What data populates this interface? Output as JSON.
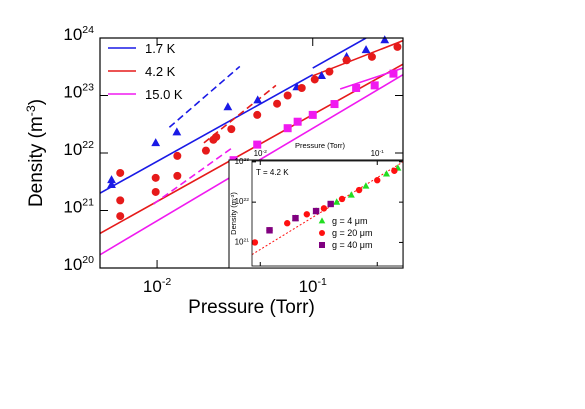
{
  "chart_data": [
    {
      "type": "scatter",
      "log_x": true,
      "log_y": true,
      "xlabel": "Pressure (Torr)",
      "ylabel": {
        "text": "Density (m",
        "sup": "-3",
        "tail": ")"
      },
      "xlim": [
        0.0043,
        0.38
      ],
      "ylim": [
        1e+20,
        1e+24
      ],
      "xticks": [
        {
          "value": 0.01,
          "label": "10",
          "sup": "-2"
        },
        {
          "value": 0.1,
          "label": "10",
          "sup": "-1"
        }
      ],
      "yticks": [
        {
          "value": 1e+20,
          "label": "10",
          "sup": "20"
        },
        {
          "value": 1e+21,
          "label": "10",
          "sup": "21"
        },
        {
          "value": 1e+22,
          "label": "10",
          "sup": "22"
        },
        {
          "value": 1e+23,
          "label": "10",
          "sup": "23"
        },
        {
          "value": 1e+24,
          "label": "10",
          "sup": "24"
        }
      ],
      "legend": "upper-left",
      "series": [
        {
          "name": "1.7 K",
          "color": "#1a1ae6",
          "marker": "triangle",
          "x": [
            0.0051,
            0.0051,
            0.0098,
            0.0134,
            0.0285,
            0.0443,
            0.079,
            0.114,
            0.165,
            0.22,
            0.29
          ],
          "y": [
            2.8e+21,
            3.4e+21,
            1.5e+22,
            2.3e+22,
            6.3e+22,
            8.3e+22,
            1.4e+23,
            2.2e+23,
            4.7e+23,
            6.2e+23,
            9.2e+23
          ]
        },
        {
          "name": "4.2 K",
          "color": "#e61a1a",
          "marker": "circle",
          "x": [
            0.0058,
            0.0058,
            0.0058,
            0.0098,
            0.0098,
            0.0135,
            0.0135,
            0.0206,
            0.023,
            0.024,
            0.03,
            0.044,
            0.059,
            0.069,
            0.085,
            0.103,
            0.128,
            0.165,
            0.24,
            0.35
          ],
          "y": [
            8e+20,
            4.5e+21,
            1.5e+21,
            3.7e+21,
            2.1e+21,
            8.9e+21,
            4e+21,
            1.1e+22,
            1.7e+22,
            1.9e+22,
            2.6e+22,
            4.6e+22,
            7.2e+22,
            1e+23,
            1.35e+23,
            1.9e+23,
            2.6e+23,
            4.1e+23,
            4.7e+23,
            7e+23
          ]
        },
        {
          "name": "15.0 K",
          "color": "#f01af0",
          "marker": "square",
          "x": [
            0.031,
            0.044,
            0.069,
            0.08,
            0.1,
            0.138,
            0.19,
            0.25,
            0.33
          ],
          "y": [
            7.5e+21,
            1.4e+22,
            2.7e+22,
            3.5e+22,
            4.6e+22,
            7.1e+22,
            1.35e+23,
            1.5e+23,
            2.4e+23
          ]
        }
      ],
      "fits": [
        {
          "color": "#1a1ae6",
          "dashed": false,
          "x": [
            0.0043,
            0.1
          ],
          "y": [
            2e+21,
            2.3e+23
          ]
        },
        {
          "color": "#1a1ae6",
          "dashed": false,
          "x": [
            0.1,
            0.22
          ],
          "y": [
            3e+23,
            1e+24
          ]
        },
        {
          "color": "#1a1ae6",
          "dashed": true,
          "x": [
            0.012,
            0.034
          ],
          "y": [
            2.8e+22,
            3.2e+23
          ]
        },
        {
          "color": "#e61a1a",
          "dashed": false,
          "x": [
            0.0043,
            0.38
          ],
          "y": [
            4e+20,
            3.5e+23
          ]
        },
        {
          "color": "#e61a1a",
          "dashed": false,
          "x": [
            0.1,
            0.38
          ],
          "y": [
            2.2e+23,
            9e+23
          ]
        },
        {
          "color": "#e61a1a",
          "dashed": true,
          "x": [
            0.02,
            0.058
          ],
          "y": [
            1.5e+22,
            1.5e+23
          ]
        },
        {
          "color": "#f01af0",
          "dashed": false,
          "x": [
            0.0043,
            0.38
          ],
          "y": [
            1.7e+20,
            2.3e+23
          ]
        },
        {
          "color": "#f01af0",
          "dashed": false,
          "x": [
            0.15,
            0.38
          ],
          "y": [
            1.3e+23,
            3e+23
          ]
        },
        {
          "color": "#f01af0",
          "dashed": true,
          "x": [
            0.0095,
            0.03
          ],
          "y": [
            1.3e+21,
            1.2e+22
          ]
        }
      ]
    },
    {
      "type": "scatter",
      "log_x": true,
      "log_y": true,
      "xlabel": "Pressure (Torr)",
      "ylabel": {
        "text": "Density (m",
        "sup": "-3",
        "tail": ")"
      },
      "annotation": "T = 4.2 K",
      "xlim": [
        0.0085,
        0.166
      ],
      "ylim": [
        2.6e+20,
        1.05e+23
      ],
      "xticks": [
        {
          "value": 0.01,
          "label": "10",
          "sup": "-2"
        },
        {
          "value": 0.1,
          "label": "10",
          "sup": "-1"
        }
      ],
      "yticks": [
        {
          "value": 1e+21,
          "label": "10",
          "sup": "21"
        },
        {
          "value": 1e+22,
          "label": "10",
          "sup": "22"
        },
        {
          "value": 1e+23,
          "label": "10",
          "sup": "23"
        }
      ],
      "legend": "lower-right",
      "series": [
        {
          "name": "g = 4 μm",
          "color": "#22dd22",
          "marker": "triangle",
          "x": [
            0.02,
            0.03,
            0.045,
            0.06,
            0.08,
            0.12,
            0.15
          ],
          "y": [
            4e+21,
            6e+21,
            1e+22,
            1.5e+22,
            2.5e+22,
            5e+22,
            7e+22
          ]
        },
        {
          "name": "g = 20 μm",
          "color": "#ff1010",
          "marker": "circle",
          "x": [
            0.009,
            0.012,
            0.017,
            0.025,
            0.035,
            0.05,
            0.07,
            0.1,
            0.14
          ],
          "y": [
            1e+21,
            2e+21,
            3e+21,
            5e+21,
            7e+21,
            1.2e+22,
            2e+22,
            3.5e+22,
            6e+22
          ]
        },
        {
          "name": "g = 40 μm",
          "color": "#800080",
          "marker": "square",
          "x": [
            0.012,
            0.02,
            0.03,
            0.04
          ],
          "y": [
            2e+21,
            4e+21,
            6e+21,
            9e+21
          ]
        }
      ],
      "fits": [
        {
          "color": "#ff1010",
          "dashed": true,
          "x": [
            0.0085,
            0.166
          ],
          "y": [
            5e+20,
            1e+23
          ]
        }
      ]
    }
  ]
}
